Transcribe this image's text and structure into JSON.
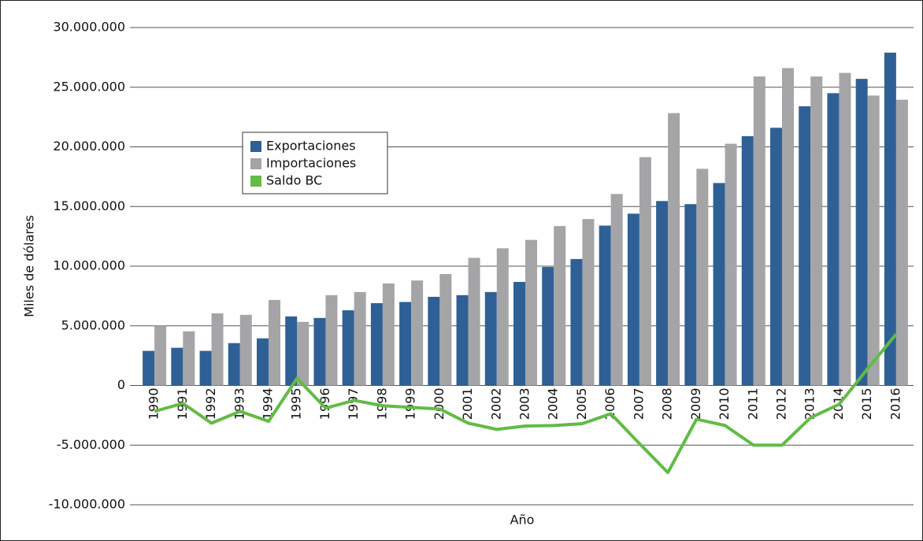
{
  "chart_data": {
    "type": "bar_line",
    "x_label": "Año",
    "y_label": "Miles de dólares",
    "categories": [
      "1990",
      "1991",
      "1992",
      "1993",
      "1994",
      "1995",
      "1996",
      "1997",
      "1998",
      "1999",
      "2000",
      "2001",
      "2002",
      "2003",
      "2004",
      "2005",
      "2006",
      "2007",
      "2008",
      "2009",
      "2010",
      "2011",
      "2012",
      "2013",
      "2014",
      "2015",
      "2016"
    ],
    "series": [
      {
        "name": "Exportaciones",
        "type": "bar",
        "color": "#2e6096",
        "values": [
          2900000,
          3160000,
          2900000,
          3550000,
          3950000,
          5790000,
          5660000,
          6300000,
          6900000,
          7000000,
          7430000,
          7570000,
          7830000,
          8680000,
          9930000,
          10600000,
          13400000,
          14400000,
          15460000,
          15200000,
          16970000,
          20900000,
          21600000,
          23400000,
          24500000,
          25700000,
          27900000
        ]
      },
      {
        "name": "Importaciones",
        "type": "bar",
        "color": "#a5a5a7",
        "values": [
          5000000,
          4540000,
          6050000,
          5920000,
          7170000,
          5330000,
          7570000,
          7830000,
          8550000,
          8800000,
          9340000,
          10700000,
          11500000,
          12200000,
          13360000,
          13950000,
          16050000,
          19140000,
          22830000,
          18160000,
          20260000,
          25900000,
          26600000,
          25900000,
          26200000,
          24300000,
          23950000
        ]
      },
      {
        "name": "Saldo BC",
        "type": "line",
        "color": "#62bb46",
        "values": [
          -2170000,
          -1500000,
          -3160000,
          -2170000,
          -3000000,
          600000,
          -1900000,
          -1250000,
          -1700000,
          -1840000,
          -1970000,
          -3160000,
          -3680000,
          -3400000,
          -3360000,
          -3200000,
          -2370000,
          -4870000,
          -7300000,
          -2830000,
          -3350000,
          -5000000,
          -5000000,
          -2700000,
          -1580000,
          1400000,
          4300000
        ]
      }
    ],
    "ylim": [
      -10000000,
      30000000
    ],
    "yticks": [
      {
        "value": -10000000,
        "label": "-10.000.000"
      },
      {
        "value": -5000000,
        "label": "-5.000.000"
      },
      0,
      {
        "value": 5000000,
        "label": "5.000.000"
      },
      {
        "value": 10000000,
        "label": "10.000.000"
      },
      {
        "value": 15000000,
        "label": "15.000.000"
      },
      {
        "value": 20000000,
        "label": "20.000.000"
      },
      {
        "value": 25000000,
        "label": "25.000.000"
      },
      {
        "value": 30000000,
        "label": "30.000.000"
      }
    ],
    "grid": true
  }
}
